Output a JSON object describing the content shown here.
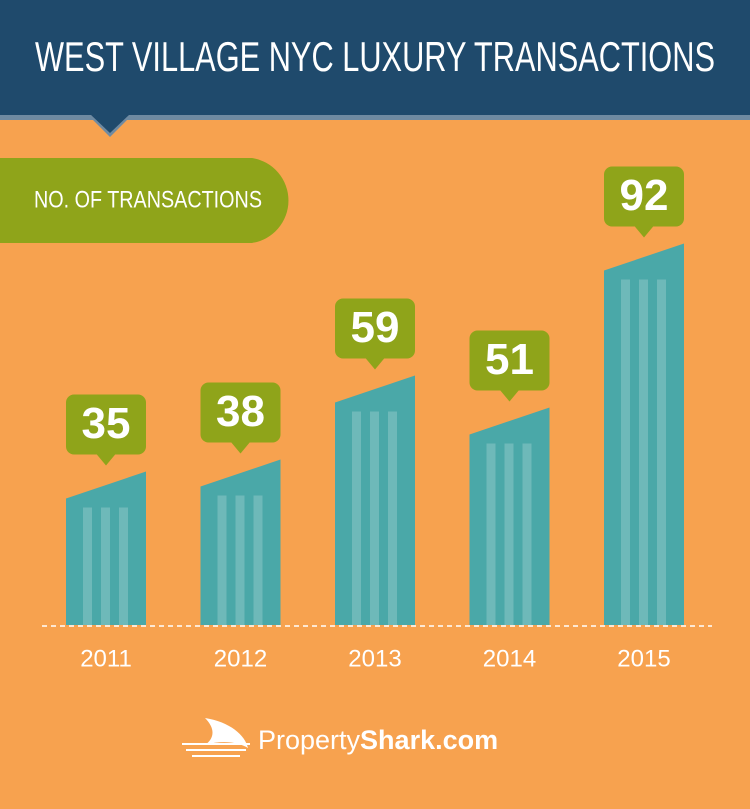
{
  "chart_data": {
    "type": "bar",
    "title": "WEST VILLAGE NYC LUXURY TRANSACTIONS",
    "subtitle": "NO. OF TRANSACTIONS",
    "categories": [
      "2011",
      "2012",
      "2013",
      "2014",
      "2015"
    ],
    "values": [
      35,
      38,
      59,
      51,
      92
    ],
    "color": "#4aa8a8",
    "label_color": "#8fa41a"
  },
  "footer": {
    "brand_light": "Property",
    "brand_bold": "Shark.com"
  }
}
